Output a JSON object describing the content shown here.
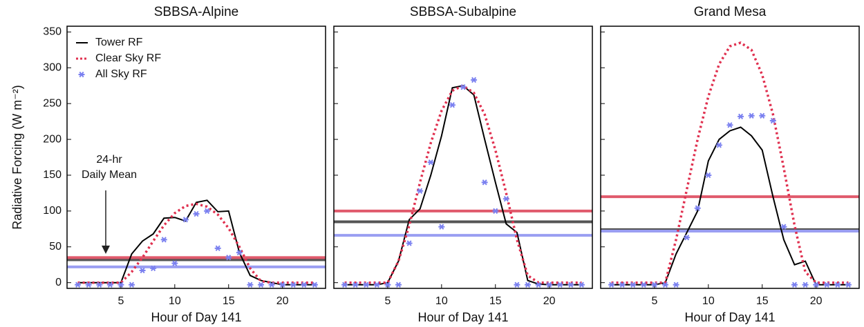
{
  "chart_data": [
    {
      "type": "line",
      "title": "SBBSA-Alpine",
      "xlabel": "Hour of Day 141",
      "ylabel": "Radiative Forcing (W m⁻²)",
      "annotation": [
        "24-hr",
        "Daily Mean"
      ],
      "x": [
        1,
        2,
        3,
        4,
        5,
        6,
        7,
        8,
        9,
        10,
        11,
        12,
        13,
        14,
        15,
        16,
        17,
        18,
        19,
        20,
        21,
        22,
        23
      ],
      "xlim": [
        0,
        24
      ],
      "xticks": [
        5,
        10,
        15,
        20
      ],
      "ylim": [
        -8,
        358
      ],
      "yticks": [
        0,
        50,
        100,
        150,
        200,
        250,
        300,
        350
      ],
      "series": [
        {
          "name": "Tower RF",
          "color": "#000000",
          "style": "solid",
          "mean": 32,
          "mean_color": "#555555",
          "values": [
            0,
            0,
            0,
            0,
            0,
            40,
            58,
            68,
            90,
            91,
            86,
            112,
            115,
            99,
            100,
            42,
            10,
            3,
            0,
            -3,
            -3,
            -3,
            -3
          ]
        },
        {
          "name": "Clear Sky RF",
          "color": "#e0304f",
          "style": "dotted",
          "mean": 35,
          "mean_color": "#e05a6c",
          "values": [
            0,
            0,
            0,
            0,
            0,
            15,
            35,
            58,
            80,
            97,
            107,
            110,
            106,
            95,
            76,
            50,
            20,
            2,
            0,
            0,
            0,
            0,
            0
          ]
        },
        {
          "name": "All Sky RF",
          "color": "#7a80f0",
          "style": "markers",
          "mean": 22,
          "mean_color": "#9a9ef2",
          "values": [
            -3,
            -3,
            -3,
            -3,
            -3,
            -3,
            17,
            20,
            60,
            27,
            88,
            96,
            100,
            48,
            35,
            42,
            -3,
            -3,
            -3,
            -3,
            -3,
            -3,
            -3
          ]
        }
      ]
    },
    {
      "type": "line",
      "title": "SBBSA-Subalpine",
      "xlabel": "Hour of Day 141",
      "x": [
        1,
        2,
        3,
        4,
        5,
        6,
        7,
        8,
        9,
        10,
        11,
        12,
        13,
        14,
        15,
        16,
        17,
        18,
        19,
        20,
        21,
        22,
        23
      ],
      "xlim": [
        0,
        24
      ],
      "xticks": [
        5,
        10,
        15,
        20
      ],
      "ylim": [
        -8,
        358
      ],
      "series": [
        {
          "color": "#000000",
          "style": "solid",
          "mean": 85,
          "mean_color": "#555555",
          "values": [
            -3,
            -3,
            -3,
            -3,
            0,
            30,
            88,
            103,
            150,
            205,
            272,
            275,
            262,
            200,
            140,
            82,
            70,
            3,
            -2,
            -3,
            -3,
            -3,
            -3
          ]
        },
        {
          "color": "#e0304f",
          "style": "dotted",
          "mean": 100,
          "mean_color": "#e05a6c",
          "values": [
            0,
            0,
            0,
            0,
            0,
            30,
            80,
            140,
            195,
            240,
            268,
            275,
            265,
            235,
            185,
            125,
            60,
            10,
            0,
            0,
            0,
            0,
            0
          ]
        },
        {
          "color": "#7a80f0",
          "style": "markers",
          "mean": 66,
          "mean_color": "#9a9ef2",
          "values": [
            -3,
            -3,
            -3,
            -3,
            -3,
            -3,
            55,
            128,
            168,
            78,
            248,
            273,
            283,
            140,
            100,
            117,
            -3,
            -3,
            -3,
            -3,
            -3,
            -3,
            -3
          ]
        }
      ]
    },
    {
      "type": "line",
      "title": "Grand Mesa",
      "xlabel": "Hour of Day 141",
      "x": [
        1,
        2,
        3,
        4,
        5,
        6,
        7,
        8,
        9,
        10,
        11,
        12,
        13,
        14,
        15,
        16,
        17,
        18,
        19,
        20,
        21,
        22,
        23
      ],
      "xlim": [
        0,
        24
      ],
      "xticks": [
        5,
        10,
        15,
        20
      ],
      "ylim": [
        -8,
        358
      ],
      "series": [
        {
          "color": "#000000",
          "style": "solid",
          "mean": 74,
          "mean_color": "#555555",
          "values": [
            -3,
            -3,
            -3,
            -3,
            -3,
            0,
            40,
            70,
            100,
            170,
            200,
            212,
            217,
            205,
            185,
            120,
            60,
            25,
            30,
            -3,
            -3,
            -3,
            -3
          ]
        },
        {
          "color": "#e0304f",
          "style": "dotted",
          "mean": 120,
          "mean_color": "#e05a6c",
          "values": [
            0,
            0,
            0,
            0,
            0,
            0,
            60,
            130,
            200,
            260,
            305,
            330,
            335,
            325,
            290,
            235,
            160,
            80,
            15,
            0,
            0,
            0,
            0
          ]
        },
        {
          "color": "#7a80f0",
          "style": "markers",
          "mean": 72,
          "mean_color": "#9a9ef2",
          "values": [
            -3,
            -3,
            -3,
            -3,
            -3,
            -3,
            -3,
            63,
            104,
            150,
            192,
            220,
            232,
            233,
            233,
            226,
            78,
            -3,
            -3,
            -3,
            -3,
            -3,
            -3
          ]
        }
      ]
    }
  ]
}
